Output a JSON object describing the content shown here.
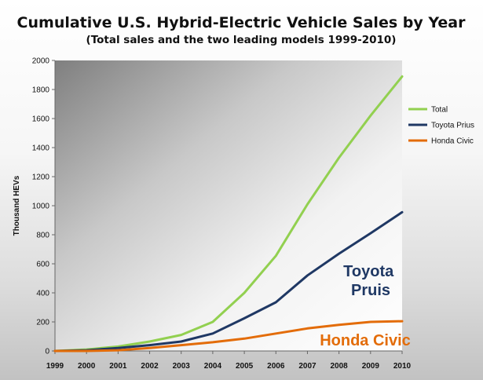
{
  "chart_data": {
    "type": "line",
    "title": "Cumulative U.S. Hybrid-Electric Vehicle Sales by Year",
    "subtitle": "(Total sales and the two leading models 1999-2010)",
    "ylabel": "Thousand HEVs",
    "xlabel": "",
    "x": [
      "1999",
      "2000",
      "2001",
      "2002",
      "2003",
      "2004",
      "2005",
      "2006",
      "2007",
      "2008",
      "2009",
      "2010"
    ],
    "ylim": [
      0,
      2000
    ],
    "yticks": [
      0,
      200,
      400,
      600,
      800,
      1000,
      1200,
      1400,
      1600,
      1800,
      2000
    ],
    "grid": false,
    "legend_position": "right",
    "series": [
      {
        "name": "Total",
        "color": "#92d050",
        "values": [
          0,
          10,
          30,
          65,
          110,
          200,
          400,
          655,
          1010,
          1330,
          1620,
          1890
        ]
      },
      {
        "name": "Toyota Prius",
        "color": "#1f3864",
        "values": [
          0,
          5,
          20,
          40,
          65,
          120,
          225,
          335,
          520,
          670,
          810,
          955
        ]
      },
      {
        "name": "Honda Civic",
        "color": "#e36c09",
        "values": [
          0,
          0,
          5,
          20,
          40,
          60,
          85,
          120,
          155,
          180,
          200,
          205
        ]
      }
    ],
    "annotations": [
      {
        "text_lines": [
          "Toyota",
          "Pruis"
        ],
        "color": "#1f3864"
      },
      {
        "text_lines": [
          "Honda Civic"
        ],
        "color": "#e36c09"
      }
    ]
  }
}
